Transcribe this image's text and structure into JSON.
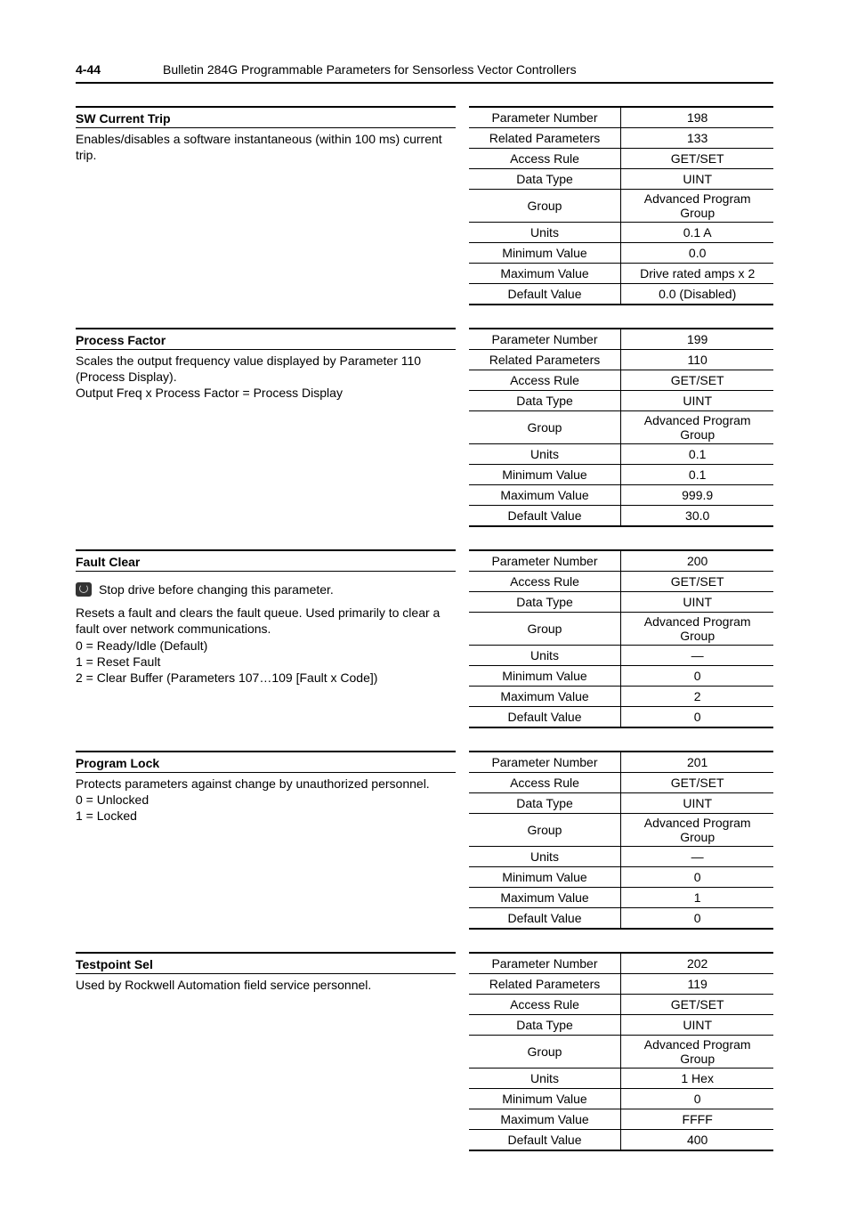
{
  "header": {
    "page_number": "4-44",
    "title": "Bulletin 284G Programmable Parameters for Sensorless Vector Controllers"
  },
  "blocks": [
    {
      "title": "SW Current Trip",
      "desc_lines": [
        "Enables/disables a software instantaneous (within 100 ms) current trip."
      ],
      "warning": null,
      "desc_lines_after": [],
      "attrs": [
        {
          "label": "Parameter Number",
          "value": "198"
        },
        {
          "label": "Related Parameters",
          "value": "133"
        },
        {
          "label": "Access Rule",
          "value": "GET/SET"
        },
        {
          "label": "Data Type",
          "value": "UINT"
        },
        {
          "label": "Group",
          "value": "Advanced Program Group"
        },
        {
          "label": "Units",
          "value": "0.1 A"
        },
        {
          "label": "Minimum Value",
          "value": "0.0"
        },
        {
          "label": "Maximum Value",
          "value": "Drive rated amps x 2"
        },
        {
          "label": "Default Value",
          "value": "0.0 (Disabled)"
        }
      ]
    },
    {
      "title": "Process Factor",
      "desc_lines": [
        "Scales the output frequency value displayed by Parameter 110 (Process Display).",
        "Output Freq x Process Factor = Process Display"
      ],
      "warning": null,
      "desc_lines_after": [],
      "attrs": [
        {
          "label": "Parameter Number",
          "value": "199"
        },
        {
          "label": "Related Parameters",
          "value": "110"
        },
        {
          "label": "Access Rule",
          "value": "GET/SET"
        },
        {
          "label": "Data Type",
          "value": "UINT"
        },
        {
          "label": "Group",
          "value": "Advanced Program Group"
        },
        {
          "label": "Units",
          "value": "0.1"
        },
        {
          "label": "Minimum Value",
          "value": "0.1"
        },
        {
          "label": "Maximum Value",
          "value": "999.9"
        },
        {
          "label": "Default Value",
          "value": "30.0"
        }
      ]
    },
    {
      "title": "Fault Clear",
      "desc_lines": [],
      "warning": "Stop drive before changing this parameter.",
      "desc_lines_after": [
        "Resets a fault and clears the fault queue. Used primarily to clear a fault over network communications.",
        "0 = Ready/Idle (Default)",
        "1 = Reset Fault",
        "2 = Clear Buffer (Parameters 107…109 [Fault x Code])"
      ],
      "attrs": [
        {
          "label": "Parameter Number",
          "value": "200"
        },
        {
          "label": "Access Rule",
          "value": "GET/SET"
        },
        {
          "label": "Data Type",
          "value": "UINT"
        },
        {
          "label": "Group",
          "value": "Advanced Program Group"
        },
        {
          "label": "Units",
          "value": "—"
        },
        {
          "label": "Minimum Value",
          "value": "0"
        },
        {
          "label": "Maximum Value",
          "value": "2"
        },
        {
          "label": "Default Value",
          "value": "0"
        }
      ]
    },
    {
      "title": "Program Lock",
      "desc_lines": [
        "Protects parameters against change by unauthorized personnel.",
        "0 = Unlocked",
        "1 = Locked"
      ],
      "warning": null,
      "desc_lines_after": [],
      "attrs": [
        {
          "label": "Parameter Number",
          "value": "201"
        },
        {
          "label": "Access Rule",
          "value": "GET/SET"
        },
        {
          "label": "Data Type",
          "value": "UINT"
        },
        {
          "label": "Group",
          "value": "Advanced Program Group"
        },
        {
          "label": "Units",
          "value": "—"
        },
        {
          "label": "Minimum Value",
          "value": "0"
        },
        {
          "label": "Maximum Value",
          "value": "1"
        },
        {
          "label": "Default Value",
          "value": "0"
        }
      ]
    },
    {
      "title": "Testpoint Sel",
      "desc_lines": [
        "Used by Rockwell Automation field service personnel."
      ],
      "warning": null,
      "desc_lines_after": [],
      "attrs": [
        {
          "label": "Parameter Number",
          "value": "202"
        },
        {
          "label": "Related Parameters",
          "value": "119"
        },
        {
          "label": "Access Rule",
          "value": "GET/SET"
        },
        {
          "label": "Data Type",
          "value": "UINT"
        },
        {
          "label": "Group",
          "value": "Advanced Program Group"
        },
        {
          "label": "Units",
          "value": "1 Hex"
        },
        {
          "label": "Minimum Value",
          "value": "0"
        },
        {
          "label": "Maximum Value",
          "value": "FFFF"
        },
        {
          "label": "Default Value",
          "value": "400"
        }
      ]
    }
  ]
}
